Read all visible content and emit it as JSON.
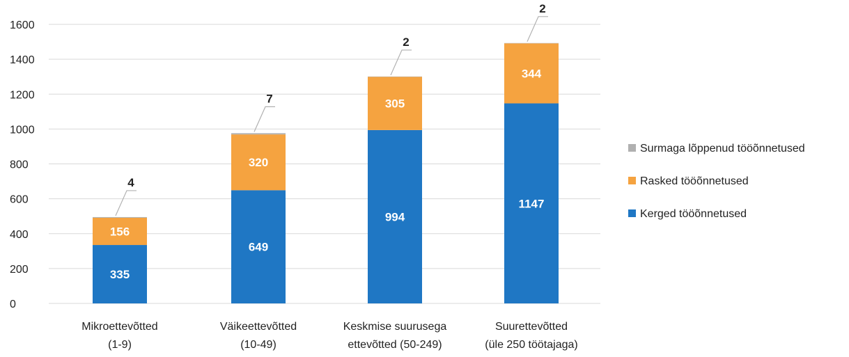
{
  "chart_data": {
    "type": "bar",
    "stacked": true,
    "categories": [
      [
        "Mikroettevõtted",
        "(1-9)"
      ],
      [
        "Väikeettevõtted",
        "(10-49)"
      ],
      [
        "Keskmise suurusega",
        "ettevõtted (50-249)"
      ],
      [
        "Suurettevõtted",
        "(üle 250 töötajaga)"
      ]
    ],
    "series": [
      {
        "name": "Kerged tööõnnetused",
        "color": "#1f77c4",
        "label_color": "#ffffff",
        "values": [
          335,
          649,
          994,
          1147
        ]
      },
      {
        "name": "Rasked tööõnnetused",
        "color": "#f5a340",
        "label_color": "#ffffff",
        "values": [
          156,
          320,
          305,
          344
        ]
      },
      {
        "name": "Surmaga lõppenud tööõnnetused",
        "color": "#b0b0b0",
        "label_color": "#222222",
        "values": [
          4,
          7,
          2,
          2
        ]
      }
    ],
    "y_ticks": [
      "0",
      "200",
      "400",
      "600",
      "800",
      "1000",
      "1200",
      "1400",
      "1600"
    ],
    "ylim": [
      0,
      1600
    ],
    "grid": true,
    "legend_position": "right",
    "title": "",
    "xlabel": "",
    "ylabel": ""
  }
}
